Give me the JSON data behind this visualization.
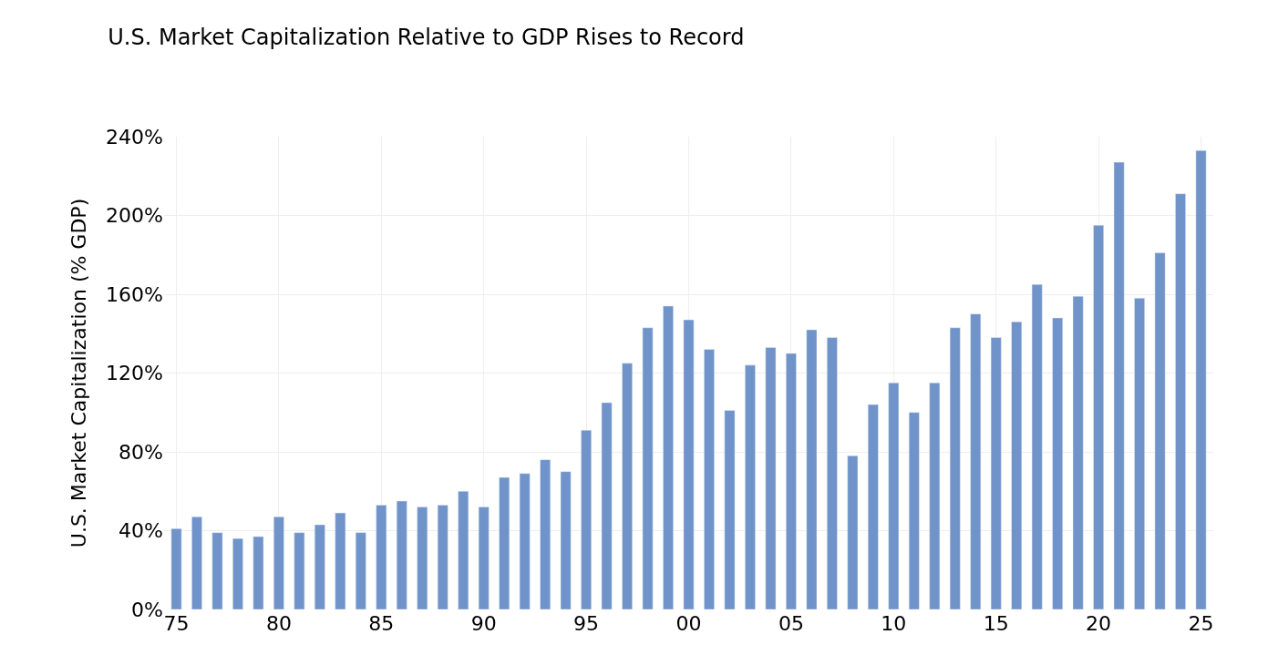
{
  "chart_data": {
    "type": "bar",
    "title": "U.S. Market Capitalization Relative to GDP Rises to Record",
    "ylabel": "U.S. Market Capitalization (% GDP)",
    "categories": [
      "75",
      null,
      null,
      null,
      null,
      "80",
      null,
      null,
      null,
      null,
      "85",
      null,
      null,
      null,
      null,
      "90",
      null,
      null,
      null,
      null,
      "95",
      null,
      null,
      null,
      null,
      "00",
      null,
      null,
      null,
      null,
      "05",
      null,
      null,
      null,
      null,
      "10",
      null,
      null,
      null,
      null,
      "15",
      null,
      null,
      null,
      null,
      "20",
      null,
      null,
      null,
      null,
      "25"
    ],
    "values": [
      41,
      47,
      39,
      36,
      37,
      47,
      39,
      43,
      49,
      39,
      53,
      55,
      52,
      53,
      60,
      52,
      67,
      69,
      76,
      70,
      91,
      105,
      125,
      143,
      154,
      147,
      132,
      101,
      124,
      133,
      130,
      142,
      138,
      78,
      104,
      115,
      100,
      115,
      143,
      150,
      138,
      146,
      165,
      148,
      159,
      195,
      227,
      158,
      181,
      211,
      233
    ],
    "color": "#7094c9",
    "ylim": [
      0,
      240
    ],
    "yticks": [
      {
        "value": 0,
        "label": "0%"
      },
      {
        "value": 40,
        "label": "40%"
      },
      {
        "value": 80,
        "label": "80%"
      },
      {
        "value": 120,
        "label": "120%"
      },
      {
        "value": 160,
        "label": "160%"
      },
      {
        "value": 200,
        "label": "200%"
      },
      {
        "value": 240,
        "label": "240%"
      }
    ],
    "grid": true
  }
}
